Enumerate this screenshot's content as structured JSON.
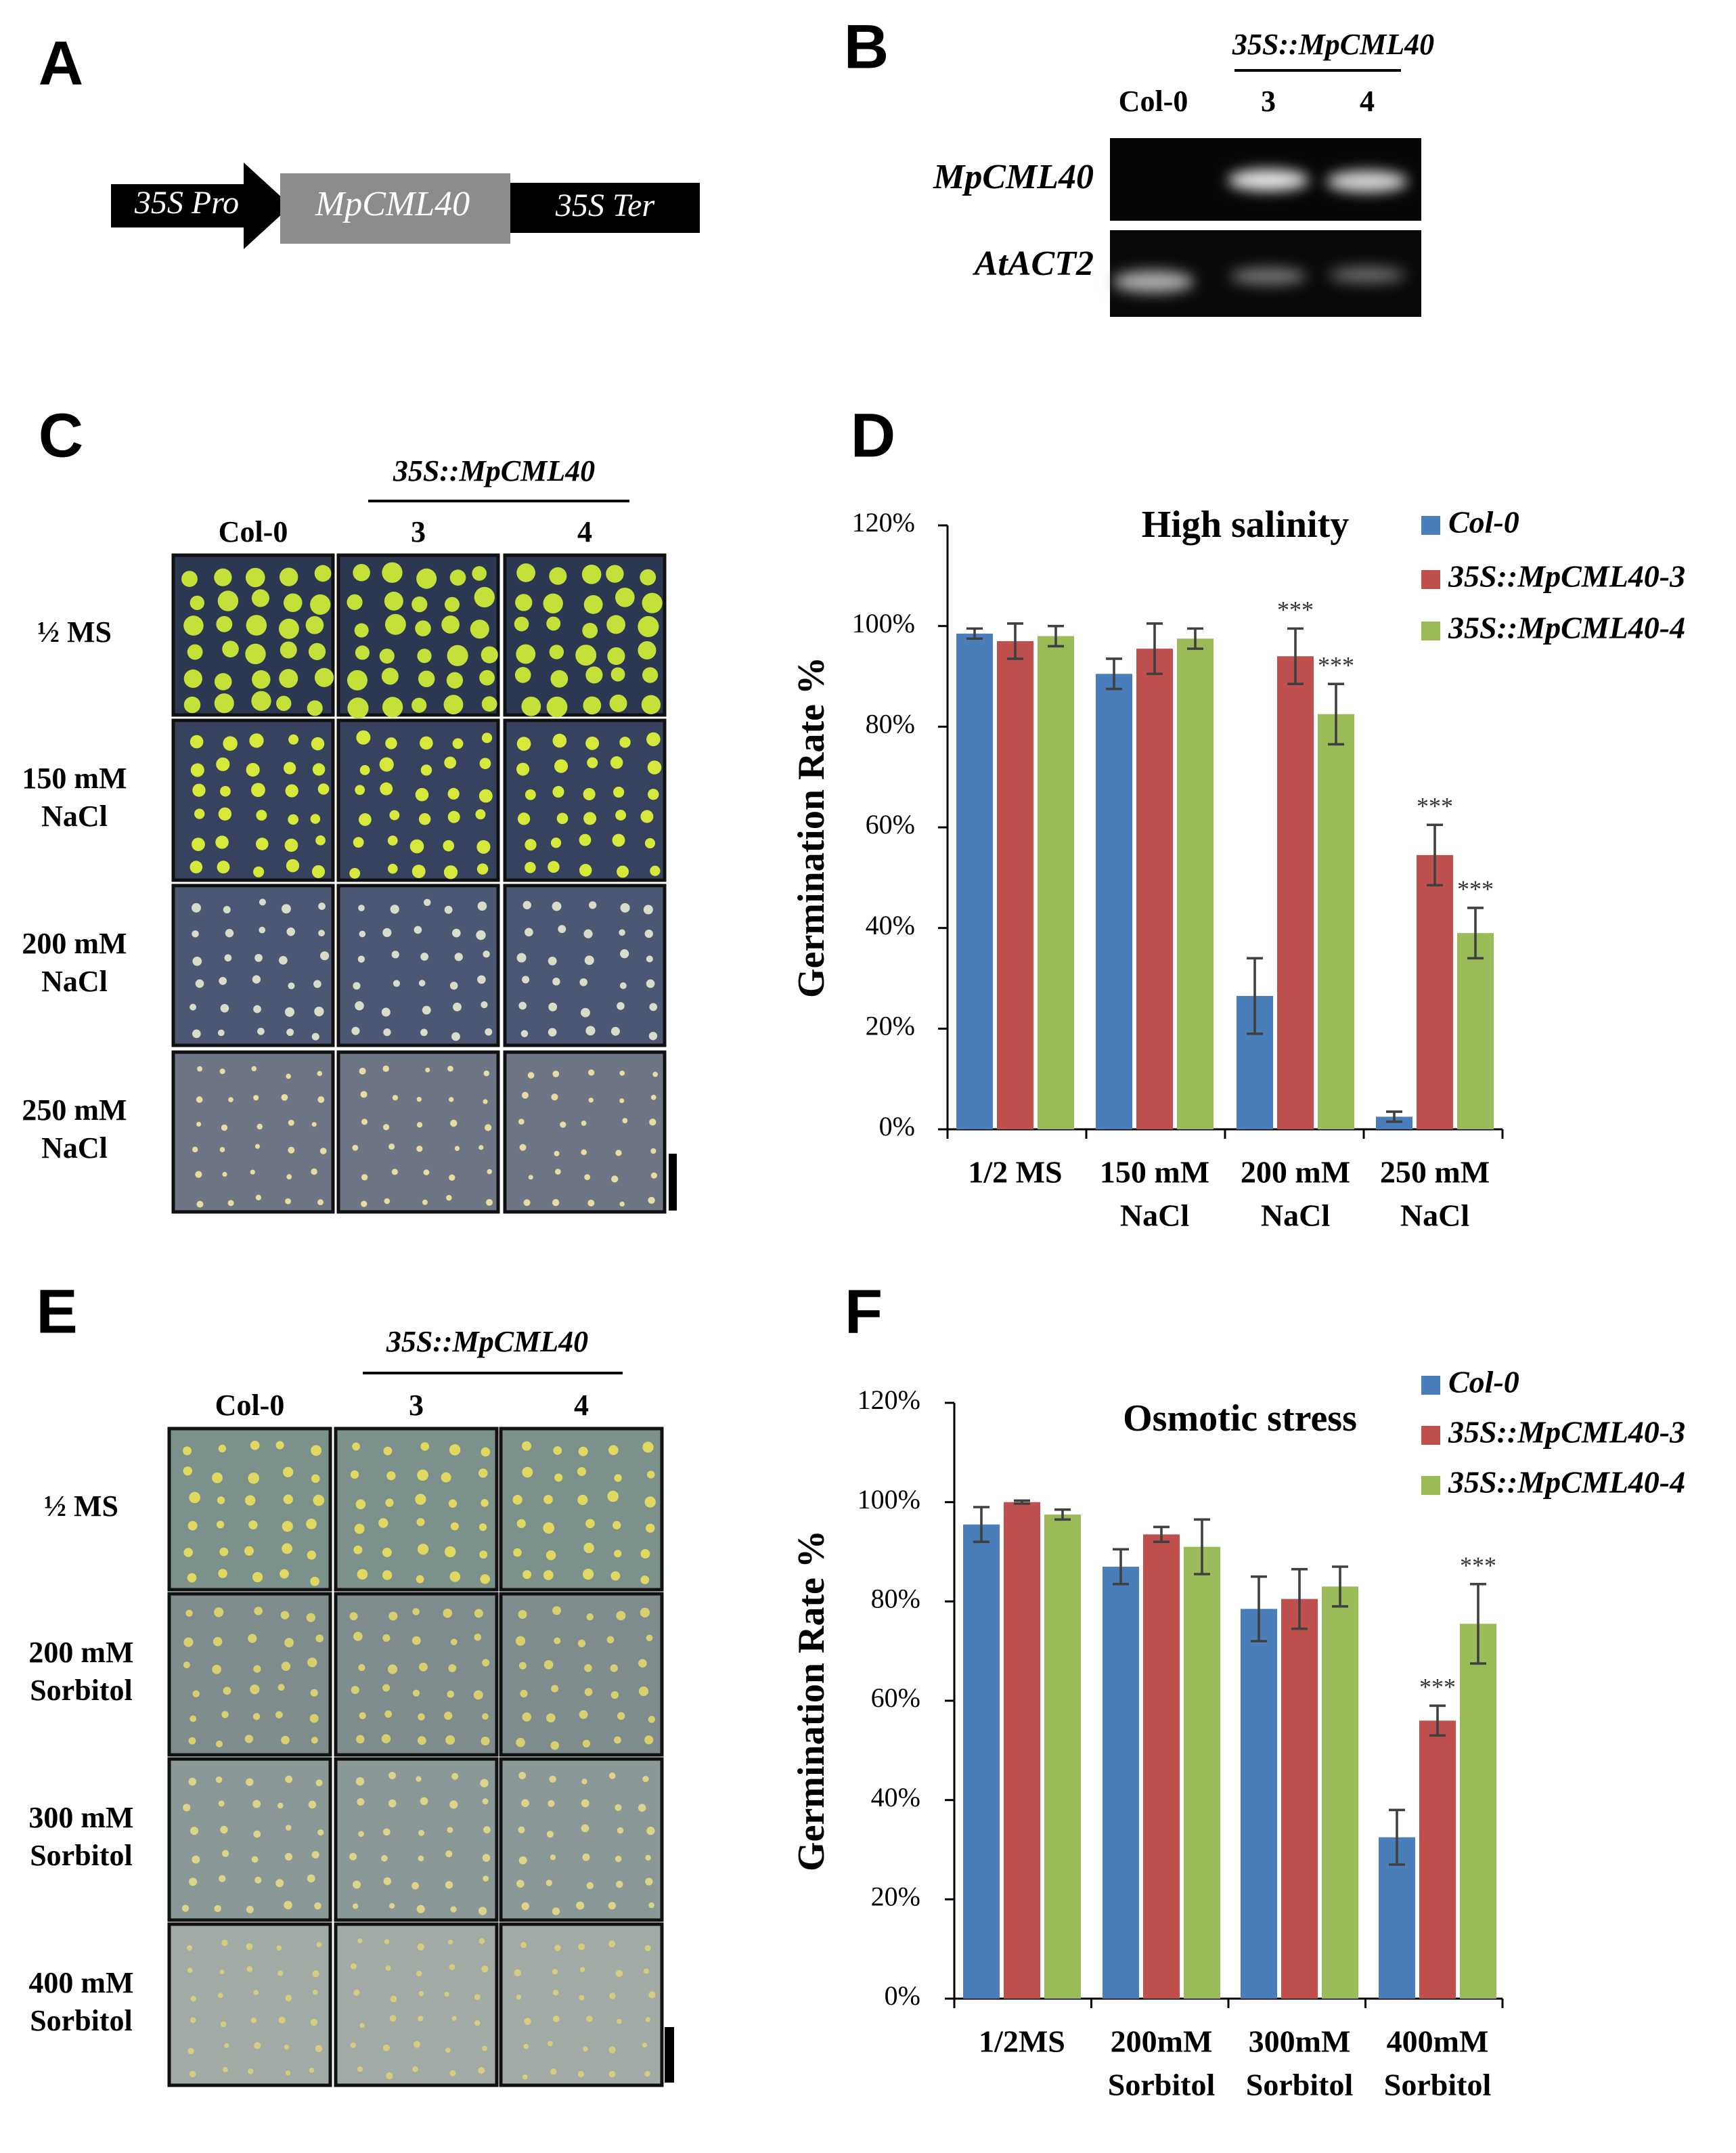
{
  "panel_labels": [
    "A",
    "B",
    "C",
    "D",
    "E",
    "F"
  ],
  "construct": {
    "promoter": "35S Pro",
    "gene": "MpCML40",
    "terminator": "35S Ter"
  },
  "gel": {
    "header": "35S::MpCML40",
    "lanes": [
      "Col-0",
      "3",
      "4"
    ],
    "rows": [
      "MpCML40",
      "AtACT2"
    ]
  },
  "plates": [
    {
      "header": "35S::MpCML40",
      "columns": [
        "Col-0",
        "3",
        "4"
      ],
      "rows": [
        [
          "½ MS"
        ],
        [
          "150 mM",
          "NaCl"
        ],
        [
          "200 mM",
          "NaCl"
        ],
        [
          "250 mM",
          "NaCl"
        ]
      ]
    },
    {
      "header": "35S::MpCML40",
      "columns": [
        "Col-0",
        "3",
        "4"
      ],
      "rows": [
        [
          "½ MS"
        ],
        [
          "200 mM",
          "Sorbitol"
        ],
        [
          "300 mM",
          "Sorbitol"
        ],
        [
          "400 mM",
          "Sorbitol"
        ]
      ]
    }
  ],
  "chart_data": [
    {
      "type": "bar",
      "title": "High salinity",
      "y_label": "Germination Rate %",
      "categories": [
        [
          "1/2 MS"
        ],
        [
          "150 mM",
          "NaCl"
        ],
        [
          "200 mM",
          "NaCl"
        ],
        [
          "250 mM",
          "NaCl"
        ]
      ],
      "series": [
        {
          "name": "Col-0",
          "color": "#4a7ebb",
          "values": [
            98.5,
            90.5,
            26.5,
            2.5
          ],
          "errors": [
            1,
            3,
            7.5,
            1
          ],
          "significance": [
            null,
            null,
            null,
            null
          ]
        },
        {
          "name": "35S::MpCML40-3",
          "color": "#c0504d",
          "values": [
            97,
            95.5,
            94,
            54.5
          ],
          "errors": [
            3.5,
            5,
            5.5,
            6
          ],
          "significance": [
            null,
            null,
            "***",
            "***"
          ]
        },
        {
          "name": "35S::MpCML40-4",
          "color": "#9bbb59",
          "values": [
            98,
            97.5,
            82.5,
            39
          ],
          "errors": [
            2,
            2,
            6,
            5
          ],
          "significance": [
            null,
            null,
            "***",
            "***"
          ]
        }
      ],
      "ylim": [
        0,
        120
      ],
      "yticks": [
        {
          "value": 0,
          "label": "0%"
        },
        {
          "value": 20,
          "label": "20%"
        },
        {
          "value": 40,
          "label": "40%"
        },
        {
          "value": 60,
          "label": "60%"
        },
        {
          "value": 80,
          "label": "80%"
        },
        {
          "value": 100,
          "label": "100%"
        },
        {
          "value": 120,
          "label": "120%"
        }
      ],
      "legend": "upper right"
    },
    {
      "type": "bar",
      "title": "Osmotic stress",
      "y_label": "Germination Rate %",
      "categories": [
        [
          "1/2MS"
        ],
        [
          "200mM",
          "Sorbitol"
        ],
        [
          "300mM",
          "Sorbitol"
        ],
        [
          "400mM",
          "Sorbitol"
        ]
      ],
      "series": [
        {
          "name": "Col-0",
          "color": "#4a7ebb",
          "values": [
            95.5,
            87,
            78.5,
            32.5
          ],
          "errors": [
            3.5,
            3.5,
            6.5,
            5.5
          ],
          "significance": [
            null,
            null,
            null,
            null
          ]
        },
        {
          "name": "35S::MpCML40-3",
          "color": "#c0504d",
          "values": [
            100,
            93.5,
            80.5,
            56
          ],
          "errors": [
            0.3,
            1.5,
            6,
            3
          ],
          "significance": [
            null,
            null,
            null,
            "***"
          ]
        },
        {
          "name": "35S::MpCML40-4",
          "color": "#9bbb59",
          "values": [
            97.5,
            91,
            83,
            75.5
          ],
          "errors": [
            1,
            5.5,
            4,
            8
          ],
          "significance": [
            null,
            null,
            null,
            "***"
          ]
        }
      ],
      "ylim": [
        0,
        120
      ],
      "yticks": [
        {
          "value": 0,
          "label": "0%"
        },
        {
          "value": 20,
          "label": "20%"
        },
        {
          "value": 40,
          "label": "40%"
        },
        {
          "value": 60,
          "label": "60%"
        },
        {
          "value": 80,
          "label": "80%"
        },
        {
          "value": 100,
          "label": "100%"
        },
        {
          "value": 120,
          "label": "120%"
        }
      ],
      "legend": "upper right"
    }
  ]
}
